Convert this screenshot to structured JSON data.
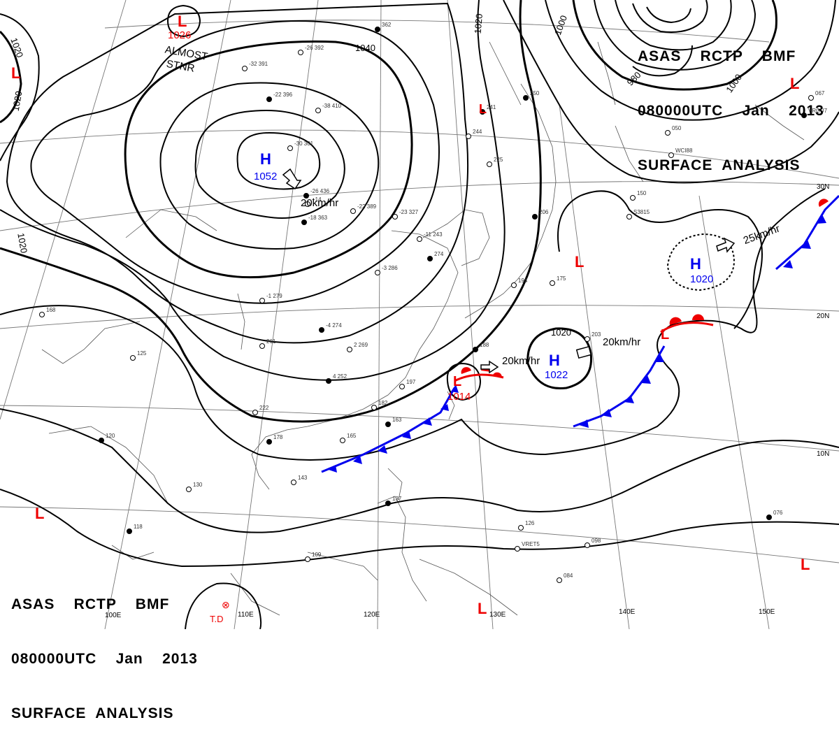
{
  "header_top": {
    "line1": "ASAS    RCTP    BMF",
    "line2": "080000UTC    Jan    2013",
    "line3": "SURFACE  ANALYSIS"
  },
  "header_bottom": {
    "line1": "ASAS    RCTP    BMF",
    "line2": "080000UTC    Jan    2013",
    "line3": "SURFACE  ANALYSIS"
  },
  "colors": {
    "high": "#0000ee",
    "low": "#ee0000",
    "isobar": "#000000",
    "grid": "#777777",
    "coast": "#555555",
    "cold_front": "#0000ee",
    "warm_front": "#ee0000"
  },
  "pressure_systems": [
    {
      "type": "H",
      "value": "1052"
    },
    {
      "type": "H",
      "value": "1022"
    },
    {
      "type": "H",
      "value": "1020"
    },
    {
      "type": "L",
      "value": "1026"
    },
    {
      "type": "L",
      "value": "1014"
    },
    {
      "type": "L",
      "value": ""
    },
    {
      "type": "L",
      "value": ""
    },
    {
      "type": "L",
      "value": ""
    },
    {
      "type": "L",
      "value": ""
    },
    {
      "type": "L",
      "value": ""
    },
    {
      "type": "L",
      "value": ""
    },
    {
      "type": "L",
      "value": ""
    }
  ],
  "isobar_labels": [
    "1040",
    "1020",
    "1020",
    "1020",
    "1020",
    "1000",
    "980",
    "1000",
    "1020"
  ],
  "annotations": {
    "stationary": "ALMOST\nSTNR",
    "motion_h1": "20km/hr",
    "motion_h2": "20km/hr",
    "motion_h3": "25km/hr",
    "motion_l": "20km/hr",
    "td": "T.D"
  },
  "lat_labels": [
    "30N",
    "20N",
    "10N"
  ],
  "lon_labels": [
    "100E",
    "110E",
    "120E",
    "130E",
    "140E",
    "150E"
  ],
  "station_texts": [
    "362",
    "-26 392",
    "-32 391",
    "-22 396",
    "-38 410",
    "-30 301",
    "-26 436",
    "+14",
    "-22 389",
    "-18 363",
    "-23 327",
    "-11 243",
    "274",
    "-3 286",
    "-1 279",
    "-4 274",
    "261",
    "2 269",
    "4 252",
    "197",
    "182",
    "163",
    "165",
    "222",
    "178",
    "143",
    "130",
    "120",
    "125",
    "168",
    "206",
    "194",
    "175",
    "188",
    "203",
    "150",
    "241",
    "244",
    "225",
    "250",
    "067",
    "050",
    "137",
    "126",
    "109",
    "118",
    "098",
    "084",
    "076",
    "VRET5",
    "WCI88",
    "VRCU7",
    "S3815"
  ]
}
